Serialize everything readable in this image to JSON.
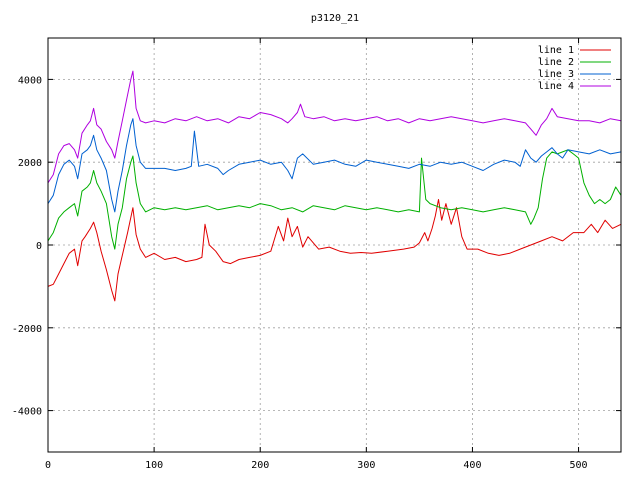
{
  "chart_data": {
    "type": "line",
    "title": "p3120_21",
    "xlabel": "",
    "ylabel": "",
    "xlim": [
      0,
      540
    ],
    "ylim": [
      -5000,
      5000
    ],
    "xticks": [
      0,
      100,
      200,
      300,
      400,
      500
    ],
    "yticks": [
      -4000,
      -2000,
      0,
      2000,
      4000
    ],
    "grid": true,
    "legend_position": "top-right",
    "series": [
      {
        "name": "line 1",
        "color": "#e00000",
        "points": [
          [
            0,
            -1000
          ],
          [
            5,
            -950
          ],
          [
            10,
            -700
          ],
          [
            15,
            -450
          ],
          [
            20,
            -200
          ],
          [
            25,
            -100
          ],
          [
            28,
            -500
          ],
          [
            32,
            100
          ],
          [
            35,
            200
          ],
          [
            40,
            400
          ],
          [
            43,
            550
          ],
          [
            46,
            300
          ],
          [
            50,
            -150
          ],
          [
            55,
            -600
          ],
          [
            60,
            -1100
          ],
          [
            63,
            -1350
          ],
          [
            66,
            -700
          ],
          [
            70,
            -250
          ],
          [
            75,
            300
          ],
          [
            80,
            900
          ],
          [
            83,
            250
          ],
          [
            87,
            -100
          ],
          [
            92,
            -300
          ],
          [
            100,
            -200
          ],
          [
            110,
            -350
          ],
          [
            120,
            -300
          ],
          [
            130,
            -400
          ],
          [
            140,
            -350
          ],
          [
            145,
            -300
          ],
          [
            148,
            500
          ],
          [
            152,
            0
          ],
          [
            158,
            -150
          ],
          [
            165,
            -400
          ],
          [
            172,
            -450
          ],
          [
            180,
            -350
          ],
          [
            190,
            -300
          ],
          [
            200,
            -250
          ],
          [
            210,
            -150
          ],
          [
            217,
            450
          ],
          [
            222,
            100
          ],
          [
            226,
            650
          ],
          [
            230,
            200
          ],
          [
            235,
            450
          ],
          [
            240,
            -50
          ],
          [
            245,
            200
          ],
          [
            255,
            -100
          ],
          [
            265,
            -50
          ],
          [
            275,
            -150
          ],
          [
            285,
            -200
          ],
          [
            295,
            -180
          ],
          [
            305,
            -200
          ],
          [
            320,
            -150
          ],
          [
            335,
            -100
          ],
          [
            345,
            -50
          ],
          [
            350,
            50
          ],
          [
            355,
            300
          ],
          [
            358,
            100
          ],
          [
            362,
            400
          ],
          [
            365,
            700
          ],
          [
            368,
            1100
          ],
          [
            371,
            600
          ],
          [
            375,
            1000
          ],
          [
            380,
            500
          ],
          [
            385,
            900
          ],
          [
            390,
            200
          ],
          [
            395,
            -100
          ],
          [
            405,
            -100
          ],
          [
            415,
            -200
          ],
          [
            425,
            -250
          ],
          [
            435,
            -200
          ],
          [
            445,
            -100
          ],
          [
            455,
            0
          ],
          [
            465,
            100
          ],
          [
            475,
            200
          ],
          [
            485,
            100
          ],
          [
            495,
            300
          ],
          [
            505,
            300
          ],
          [
            512,
            500
          ],
          [
            518,
            300
          ],
          [
            525,
            600
          ],
          [
            532,
            400
          ],
          [
            540,
            500
          ]
        ]
      },
      {
        "name": "line 2",
        "color": "#00b000",
        "points": [
          [
            0,
            100
          ],
          [
            5,
            300
          ],
          [
            10,
            650
          ],
          [
            15,
            800
          ],
          [
            20,
            900
          ],
          [
            25,
            1000
          ],
          [
            28,
            700
          ],
          [
            32,
            1300
          ],
          [
            37,
            1400
          ],
          [
            40,
            1500
          ],
          [
            43,
            1800
          ],
          [
            46,
            1500
          ],
          [
            50,
            1300
          ],
          [
            55,
            1000
          ],
          [
            60,
            200
          ],
          [
            63,
            -100
          ],
          [
            66,
            500
          ],
          [
            70,
            900
          ],
          [
            74,
            1600
          ],
          [
            78,
            2000
          ],
          [
            80,
            2150
          ],
          [
            83,
            1500
          ],
          [
            87,
            1000
          ],
          [
            92,
            800
          ],
          [
            100,
            900
          ],
          [
            110,
            850
          ],
          [
            120,
            900
          ],
          [
            130,
            850
          ],
          [
            140,
            900
          ],
          [
            150,
            950
          ],
          [
            160,
            850
          ],
          [
            170,
            900
          ],
          [
            180,
            950
          ],
          [
            190,
            900
          ],
          [
            200,
            1000
          ],
          [
            210,
            950
          ],
          [
            220,
            850
          ],
          [
            230,
            900
          ],
          [
            240,
            800
          ],
          [
            250,
            950
          ],
          [
            260,
            900
          ],
          [
            270,
            850
          ],
          [
            280,
            950
          ],
          [
            290,
            900
          ],
          [
            300,
            850
          ],
          [
            310,
            900
          ],
          [
            320,
            850
          ],
          [
            330,
            800
          ],
          [
            340,
            850
          ],
          [
            350,
            800
          ],
          [
            352,
            2100
          ],
          [
            356,
            1100
          ],
          [
            360,
            1000
          ],
          [
            370,
            900
          ],
          [
            380,
            850
          ],
          [
            390,
            900
          ],
          [
            400,
            850
          ],
          [
            410,
            800
          ],
          [
            420,
            850
          ],
          [
            430,
            900
          ],
          [
            440,
            850
          ],
          [
            450,
            800
          ],
          [
            455,
            500
          ],
          [
            458,
            650
          ],
          [
            462,
            900
          ],
          [
            466,
            1600
          ],
          [
            470,
            2100
          ],
          [
            475,
            2250
          ],
          [
            480,
            2200
          ],
          [
            485,
            2250
          ],
          [
            490,
            2300
          ],
          [
            495,
            2200
          ],
          [
            500,
            2100
          ],
          [
            505,
            1500
          ],
          [
            510,
            1200
          ],
          [
            515,
            1000
          ],
          [
            520,
            1100
          ],
          [
            525,
            1000
          ],
          [
            530,
            1100
          ],
          [
            535,
            1400
          ],
          [
            540,
            1200
          ]
        ]
      },
      {
        "name": "line 3",
        "color": "#0060d0",
        "points": [
          [
            0,
            1000
          ],
          [
            5,
            1200
          ],
          [
            10,
            1700
          ],
          [
            15,
            1950
          ],
          [
            20,
            2050
          ],
          [
            25,
            1900
          ],
          [
            28,
            1600
          ],
          [
            32,
            2200
          ],
          [
            37,
            2300
          ],
          [
            40,
            2400
          ],
          [
            43,
            2650
          ],
          [
            46,
            2300
          ],
          [
            50,
            2100
          ],
          [
            55,
            1800
          ],
          [
            60,
            1100
          ],
          [
            63,
            800
          ],
          [
            66,
            1300
          ],
          [
            70,
            1800
          ],
          [
            74,
            2400
          ],
          [
            78,
            2900
          ],
          [
            80,
            3050
          ],
          [
            83,
            2400
          ],
          [
            87,
            2000
          ],
          [
            92,
            1850
          ],
          [
            100,
            1850
          ],
          [
            110,
            1850
          ],
          [
            120,
            1800
          ],
          [
            130,
            1850
          ],
          [
            135,
            1900
          ],
          [
            138,
            2750
          ],
          [
            142,
            1900
          ],
          [
            150,
            1950
          ],
          [
            160,
            1850
          ],
          [
            165,
            1700
          ],
          [
            170,
            1800
          ],
          [
            180,
            1950
          ],
          [
            190,
            2000
          ],
          [
            200,
            2050
          ],
          [
            210,
            1950
          ],
          [
            220,
            2000
          ],
          [
            226,
            1800
          ],
          [
            230,
            1600
          ],
          [
            235,
            2100
          ],
          [
            240,
            2200
          ],
          [
            250,
            1950
          ],
          [
            260,
            2000
          ],
          [
            270,
            2050
          ],
          [
            280,
            1950
          ],
          [
            290,
            1900
          ],
          [
            300,
            2050
          ],
          [
            310,
            2000
          ],
          [
            320,
            1950
          ],
          [
            330,
            1900
          ],
          [
            340,
            1850
          ],
          [
            350,
            1950
          ],
          [
            360,
            1900
          ],
          [
            370,
            2000
          ],
          [
            380,
            1950
          ],
          [
            390,
            2000
          ],
          [
            400,
            1900
          ],
          [
            410,
            1800
          ],
          [
            420,
            1950
          ],
          [
            430,
            2050
          ],
          [
            440,
            2000
          ],
          [
            445,
            1900
          ],
          [
            450,
            2300
          ],
          [
            455,
            2100
          ],
          [
            460,
            2000
          ],
          [
            465,
            2150
          ],
          [
            470,
            2250
          ],
          [
            475,
            2350
          ],
          [
            480,
            2200
          ],
          [
            485,
            2100
          ],
          [
            490,
            2300
          ],
          [
            500,
            2250
          ],
          [
            510,
            2200
          ],
          [
            520,
            2300
          ],
          [
            530,
            2200
          ],
          [
            540,
            2250
          ]
        ]
      },
      {
        "name": "line 4",
        "color": "#b000e0",
        "points": [
          [
            0,
            1500
          ],
          [
            5,
            1700
          ],
          [
            10,
            2200
          ],
          [
            15,
            2400
          ],
          [
            20,
            2450
          ],
          [
            25,
            2300
          ],
          [
            28,
            2100
          ],
          [
            32,
            2700
          ],
          [
            37,
            2900
          ],
          [
            40,
            3000
          ],
          [
            43,
            3300
          ],
          [
            46,
            2900
          ],
          [
            50,
            2800
          ],
          [
            55,
            2500
          ],
          [
            60,
            2300
          ],
          [
            63,
            2100
          ],
          [
            66,
            2500
          ],
          [
            70,
            3000
          ],
          [
            74,
            3500
          ],
          [
            78,
            4000
          ],
          [
            80,
            4200
          ],
          [
            83,
            3300
          ],
          [
            87,
            3000
          ],
          [
            92,
            2950
          ],
          [
            100,
            3000
          ],
          [
            110,
            2950
          ],
          [
            120,
            3050
          ],
          [
            130,
            3000
          ],
          [
            140,
            3100
          ],
          [
            150,
            3000
          ],
          [
            160,
            3050
          ],
          [
            170,
            2950
          ],
          [
            180,
            3100
          ],
          [
            190,
            3050
          ],
          [
            200,
            3200
          ],
          [
            210,
            3150
          ],
          [
            220,
            3050
          ],
          [
            226,
            2950
          ],
          [
            230,
            3050
          ],
          [
            235,
            3200
          ],
          [
            238,
            3400
          ],
          [
            242,
            3100
          ],
          [
            250,
            3050
          ],
          [
            260,
            3100
          ],
          [
            270,
            3000
          ],
          [
            280,
            3050
          ],
          [
            290,
            3000
          ],
          [
            300,
            3050
          ],
          [
            310,
            3100
          ],
          [
            320,
            3000
          ],
          [
            330,
            3050
          ],
          [
            340,
            2950
          ],
          [
            350,
            3050
          ],
          [
            360,
            3000
          ],
          [
            370,
            3050
          ],
          [
            380,
            3100
          ],
          [
            390,
            3050
          ],
          [
            400,
            3000
          ],
          [
            410,
            2950
          ],
          [
            420,
            3000
          ],
          [
            430,
            3050
          ],
          [
            440,
            3000
          ],
          [
            450,
            2950
          ],
          [
            455,
            2800
          ],
          [
            460,
            2650
          ],
          [
            465,
            2900
          ],
          [
            470,
            3050
          ],
          [
            475,
            3300
          ],
          [
            480,
            3100
          ],
          [
            490,
            3050
          ],
          [
            500,
            3000
          ],
          [
            510,
            3000
          ],
          [
            520,
            2950
          ],
          [
            530,
            3050
          ],
          [
            540,
            3000
          ]
        ]
      }
    ]
  }
}
